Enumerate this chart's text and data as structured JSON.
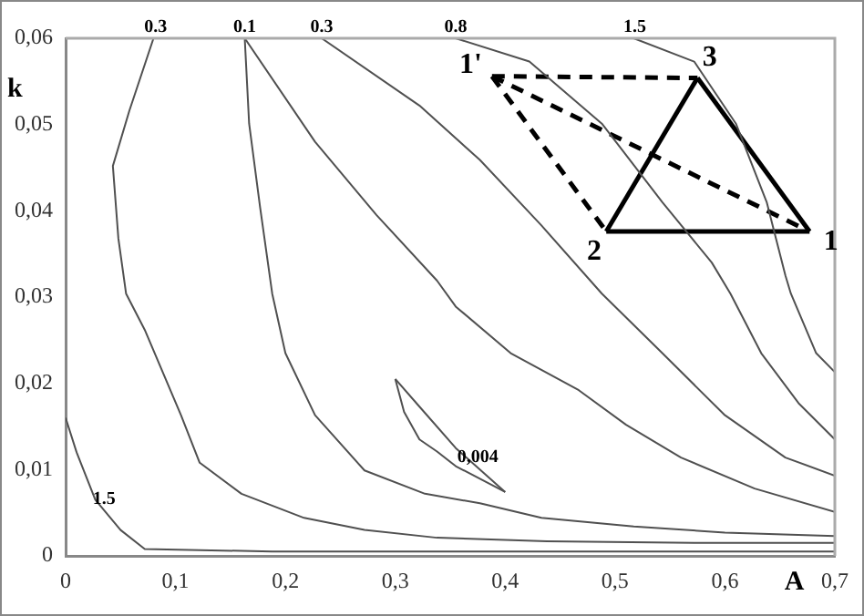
{
  "chart_data": {
    "type": "line",
    "xlabel": "A",
    "ylabel": "k",
    "xlim": [
      0,
      0.7
    ],
    "ylim": [
      0,
      0.06
    ],
    "xticks": [
      0,
      {
        "value": 0.1,
        "label": "0,1"
      },
      {
        "value": 0.2,
        "label": "0,2"
      },
      {
        "value": 0.3,
        "label": "0,3"
      },
      {
        "value": 0.4,
        "label": "0,4"
      },
      {
        "value": 0.5,
        "label": "0,5"
      },
      {
        "value": 0.6,
        "label": "0,6"
      },
      {
        "value": 0.7,
        "label": "0,7"
      }
    ],
    "yticks": [
      0,
      {
        "value": 0.01,
        "label": "0,01"
      },
      {
        "value": 0.02,
        "label": "0,02"
      },
      {
        "value": 0.03,
        "label": "0,03"
      },
      {
        "value": 0.04,
        "label": "0,04"
      },
      {
        "value": 0.05,
        "label": "0,05"
      },
      {
        "value": 0.06,
        "label": "0,06"
      }
    ],
    "series": [
      {
        "color": "#505050",
        "x": [
          0.08,
          0.058,
          0.043,
          0.048,
          0.055,
          0.072,
          0.105,
          0.122,
          0.16,
          0.217,
          0.272,
          0.338,
          0.438,
          0.572,
          0.7
        ],
        "values": [
          0.06,
          0.0516,
          0.0452,
          0.0368,
          0.0304,
          0.0262,
          0.0163,
          0.0108,
          0.0072,
          0.0044,
          0.003,
          0.0021,
          0.0017,
          0.0015,
          0.0015
        ]
      },
      {
        "color": "#505050",
        "x": [
          0.163,
          0.167,
          0.177,
          0.188,
          0.2,
          0.227,
          0.272,
          0.327,
          0.377,
          0.433,
          0.517,
          0.6,
          0.7
        ],
        "values": [
          0.06,
          0.0501,
          0.0404,
          0.0304,
          0.0235,
          0.0163,
          0.0099,
          0.0072,
          0.0061,
          0.0044,
          0.0034,
          0.0027,
          0.0023
        ]
      },
      {
        "color": "#505050",
        "x": [
          0.163,
          0.227,
          0.283,
          0.338,
          0.355,
          0.405,
          0.467,
          0.51,
          0.56,
          0.627,
          0.7
        ],
        "values": [
          0.06,
          0.048,
          0.0395,
          0.0319,
          0.0289,
          0.0235,
          0.0192,
          0.0152,
          0.0114,
          0.0078,
          0.0051
        ]
      },
      {
        "color": "#505050",
        "x": [
          0.233,
          0.322,
          0.377,
          0.433,
          0.488,
          0.543,
          0.6,
          0.655,
          0.7
        ],
        "values": [
          0.06,
          0.0522,
          0.0459,
          0.0383,
          0.0304,
          0.0235,
          0.0163,
          0.0114,
          0.0093
        ]
      },
      {
        "color": "#505050",
        "x": [
          0.355,
          0.422,
          0.488,
          0.543,
          0.588,
          0.605,
          0.633,
          0.667,
          0.7
        ],
        "values": [
          0.06,
          0.0573,
          0.0501,
          0.041,
          0.034,
          0.0304,
          0.0235,
          0.0177,
          0.0135
        ]
      },
      {
        "color": "#505050",
        "x": [
          0.517,
          0.572,
          0.61,
          0.638,
          0.655,
          0.66,
          0.683,
          0.7
        ],
        "values": [
          0.06,
          0.0573,
          0.0501,
          0.041,
          0.0325,
          0.0304,
          0.0235,
          0.0213
        ]
      },
      {
        "color": "#505050",
        "x": [
          0,
          0.01,
          0.027,
          0.05,
          0.072,
          0.188,
          0.438,
          0.7
        ],
        "values": [
          0.016,
          0.012,
          0.0065,
          0.003,
          0.0008,
          0.0005,
          0.0005,
          0.0005
        ]
      },
      {
        "color": "#505050",
        "x": [
          0.3,
          0.322,
          0.355,
          0.4
        ],
        "values": [
          0.0205,
          0.0173,
          0.0125,
          0.0074
        ]
      },
      {
        "color": "#505050",
        "x": [
          0.3,
          0.308,
          0.322,
          0.338,
          0.355,
          0.4
        ],
        "values": [
          0.0205,
          0.0167,
          0.0135,
          0.0121,
          0.0104,
          0.0074
        ]
      },
      {
        "color": "#000000",
        "line_style": "solid",
        "x": [
          0.492,
          0.677
        ],
        "values": [
          0.0376,
          0.0376
        ]
      },
      {
        "color": "#000000",
        "line_style": "solid",
        "x": [
          0.492,
          0.575
        ],
        "values": [
          0.0376,
          0.0554
        ]
      },
      {
        "color": "#000000",
        "line_style": "solid",
        "x": [
          0.575,
          0.677
        ],
        "values": [
          0.0554,
          0.0376
        ]
      },
      {
        "color": "#000000",
        "line_style": "dashed",
        "x": [
          0.388,
          0.575
        ],
        "values": [
          0.0556,
          0.0554
        ]
      },
      {
        "color": "#000000",
        "line_style": "dashed",
        "x": [
          0.388,
          0.492
        ],
        "values": [
          0.0556,
          0.0376
        ]
      },
      {
        "color": "#000000",
        "line_style": "dashed",
        "x": [
          0.388,
          0.677
        ],
        "values": [
          0.0556,
          0.0376
        ]
      }
    ],
    "annotations": [
      {
        "text": "0.3",
        "x": 0.082,
        "y": 0.06
      },
      {
        "text": "0.1",
        "x": 0.163,
        "y": 0.06
      },
      {
        "text": "0.3",
        "x": 0.233,
        "y": 0.06
      },
      {
        "text": "0.8",
        "x": 0.355,
        "y": 0.06
      },
      {
        "text": "1.5",
        "x": 0.518,
        "y": 0.06
      },
      {
        "text": "1.5",
        "x": 0.035,
        "y": 0.0053
      },
      {
        "text": "0,004",
        "x": 0.375,
        "y": 0.0102
      },
      {
        "text": "1",
        "x": 0.677,
        "y": 0.0376
      },
      {
        "text": "2",
        "x": 0.492,
        "y": 0.0376
      },
      {
        "text": "3",
        "x": 0.575,
        "y": 0.0554
      },
      {
        "text": "1'",
        "x": 0.388,
        "y": 0.0556
      }
    ]
  }
}
